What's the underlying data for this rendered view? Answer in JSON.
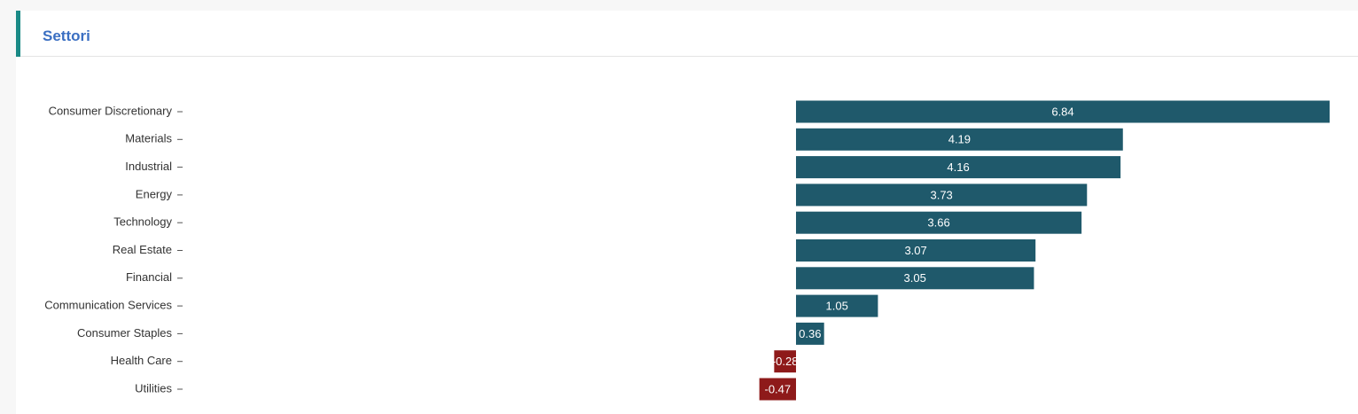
{
  "chart_data": {
    "type": "bar",
    "orientation": "horizontal",
    "title": "Settori",
    "categories": [
      "Consumer Discretionary",
      "Materials",
      "Industrial",
      "Energy",
      "Technology",
      "Real Estate",
      "Financial",
      "Communication Services",
      "Consumer Staples",
      "Health Care",
      "Utilities"
    ],
    "values": [
      6.84,
      4.19,
      4.16,
      3.73,
      3.66,
      3.07,
      3.05,
      1.05,
      0.36,
      -0.28,
      -0.47
    ],
    "color": "#1f596b",
    "negative_color": "#8e1a1a"
  }
}
